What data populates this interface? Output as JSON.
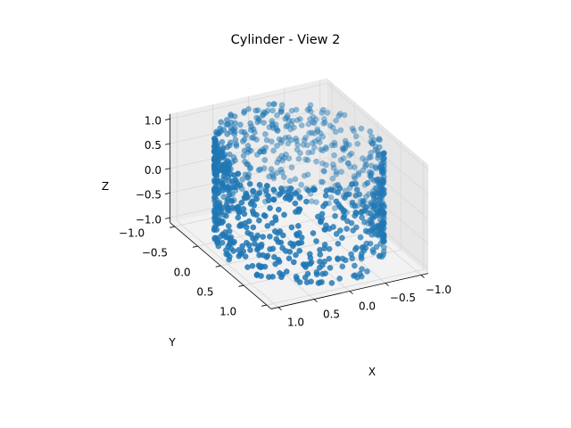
{
  "chart_data": {
    "type": "scatter",
    "projection": "3d",
    "title": "Cylinder - View 2",
    "xlabel": "X",
    "ylabel": "Y",
    "zlabel": "Z",
    "xlim": [
      -1.1,
      1.1
    ],
    "ylim": [
      -1.1,
      1.1
    ],
    "zlim": [
      -1.1,
      1.1
    ],
    "x_ticks": [
      "−1.0",
      "−0.5",
      "0.0",
      "0.5",
      "1.0"
    ],
    "y_ticks": [
      "−1.0",
      "−0.5",
      "0.0",
      "0.5",
      "1.0"
    ],
    "z_ticks": [
      "−1.0",
      "−0.5",
      "0.0",
      "0.5",
      "1.0"
    ],
    "x_tick_values": [
      -1.0,
      -0.5,
      0.0,
      0.5,
      1.0
    ],
    "y_tick_values": [
      -1.0,
      -0.5,
      0.0,
      0.5,
      1.0
    ],
    "z_tick_values": [
      -1.0,
      -0.5,
      0.0,
      0.5,
      1.0
    ],
    "grid": true,
    "marker_color": "#1f77b4",
    "series": [
      {
        "shape": "cylinder surface",
        "radius": 1.0,
        "z_range": [
          -1.0,
          1.0
        ],
        "point_count": 1000,
        "points": [
          [
            1.0,
            0.0,
            -0.9
          ],
          [
            0.97,
            0.24,
            -0.7
          ],
          [
            0.88,
            0.47,
            -0.45
          ],
          [
            0.73,
            0.68,
            -0.2
          ],
          [
            0.54,
            0.84,
            0.05
          ],
          [
            0.31,
            0.95,
            0.3
          ],
          [
            0.07,
            1.0,
            0.55
          ],
          [
            -0.18,
            0.98,
            0.8
          ],
          [
            -0.41,
            0.91,
            0.95
          ],
          [
            -0.62,
            0.78,
            -0.85
          ],
          [
            -0.79,
            0.61,
            -0.6
          ],
          [
            -0.92,
            0.39,
            -0.35
          ],
          [
            -0.99,
            0.15,
            -0.1
          ],
          [
            -0.99,
            -0.1,
            0.15
          ],
          [
            -0.93,
            -0.36,
            0.4
          ],
          [
            -0.81,
            -0.58,
            0.65
          ],
          [
            -0.64,
            -0.77,
            0.9
          ],
          [
            -0.44,
            -0.9,
            -0.75
          ],
          [
            -0.21,
            -0.98,
            -0.5
          ],
          [
            0.04,
            -1.0,
            -0.25
          ],
          [
            0.28,
            -0.96,
            0.0
          ],
          [
            0.51,
            -0.86,
            0.25
          ],
          [
            0.71,
            -0.71,
            0.5
          ],
          [
            0.86,
            -0.51,
            0.75
          ],
          [
            0.96,
            -0.27,
            1.0
          ]
        ]
      }
    ]
  }
}
